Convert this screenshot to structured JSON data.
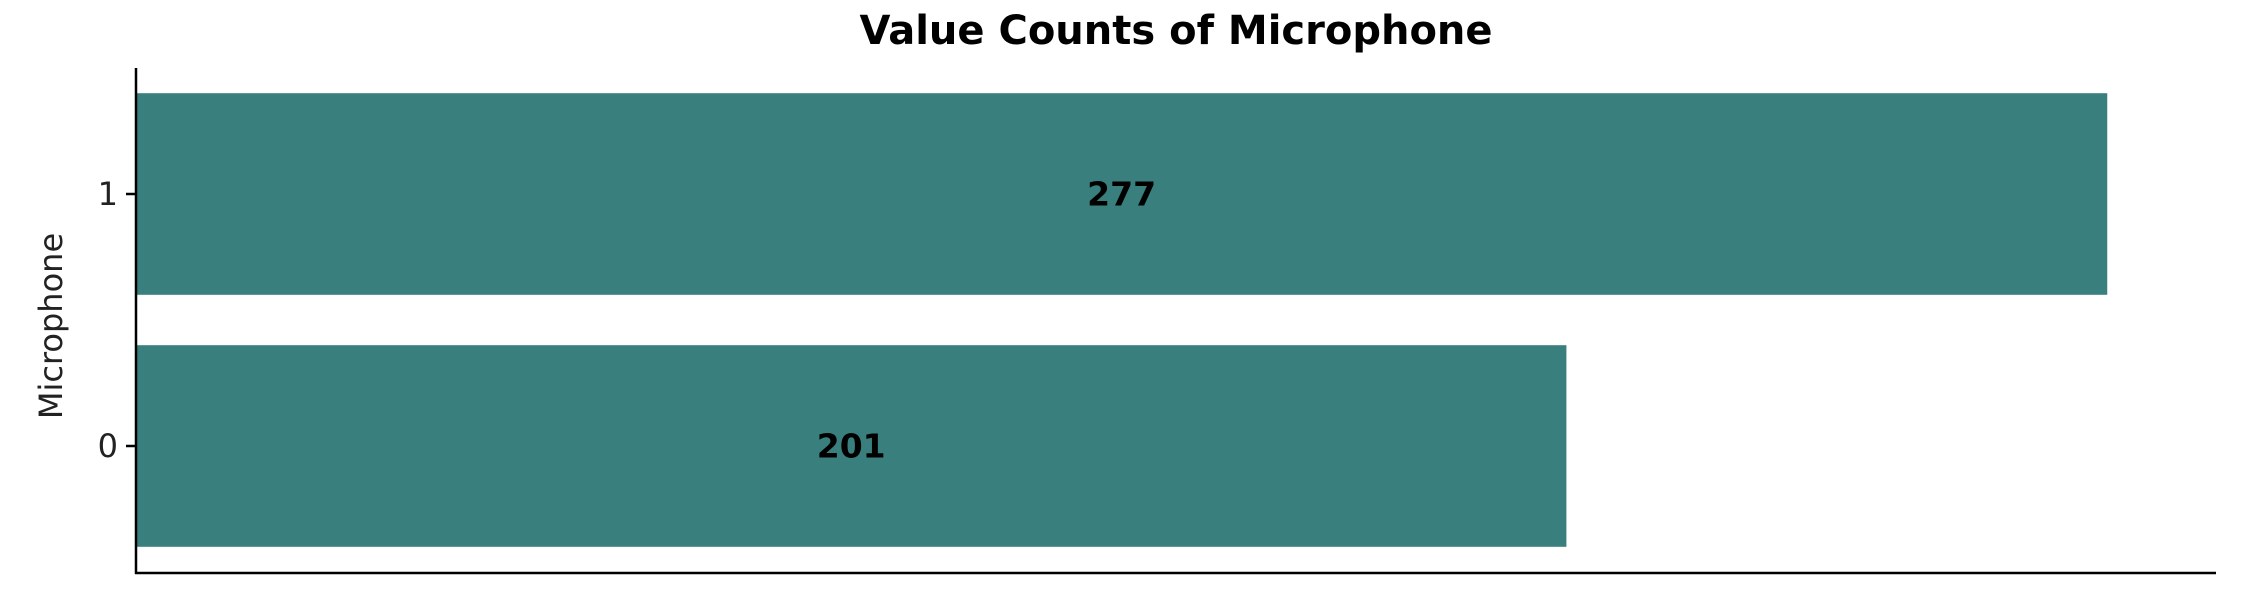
{
  "chart_data": {
    "type": "bar",
    "orientation": "horizontal",
    "title": "Value Counts of Microphone",
    "xlabel": "",
    "ylabel": "Microphone",
    "categories": [
      "0",
      "1"
    ],
    "values": [
      201,
      277
    ],
    "data_labels": [
      "201",
      "277"
    ],
    "xlim": [
      0,
      292
    ],
    "bar_color": "#387f7d",
    "grid": false,
    "legend": "none"
  }
}
